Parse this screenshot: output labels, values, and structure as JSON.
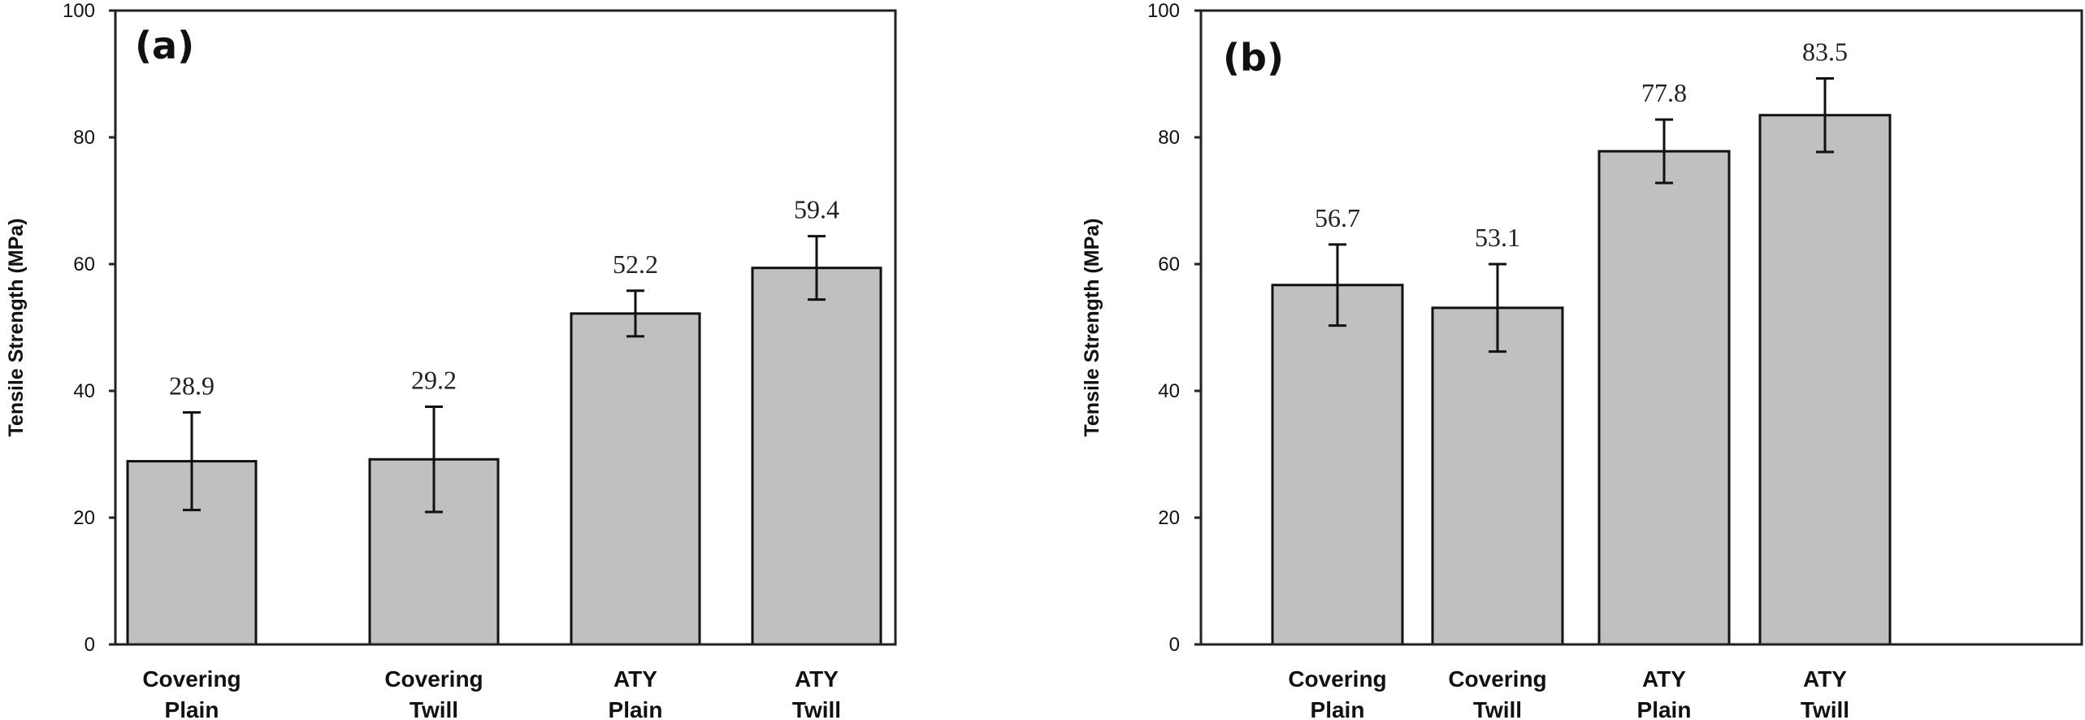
{
  "chart_data": [
    {
      "type": "bar",
      "panel": "(a)",
      "title": "",
      "xlabel": "",
      "ylabel": "Tensile Strength (MPa)",
      "ylim": [
        0,
        100
      ],
      "yticks": [
        0,
        20,
        40,
        60,
        80,
        100
      ],
      "ytick_labels": [
        "0",
        "20",
        "40",
        "60",
        "80",
        "100"
      ],
      "grid": false,
      "legend": "none",
      "categories": [
        [
          "Covering",
          "Plain"
        ],
        [
          "Covering",
          "Twill"
        ],
        [
          "ATY",
          "Plain"
        ],
        [
          "ATY",
          "Twill"
        ]
      ],
      "values": [
        28.9,
        29.2,
        52.2,
        59.4
      ],
      "value_labels": [
        "28.9",
        "29.2",
        "52.2",
        "59.4"
      ],
      "error": [
        7.7,
        8.3,
        3.6,
        5.0
      ],
      "bar_color": "#c0c0c0",
      "edge_color": "#111111"
    },
    {
      "type": "bar",
      "panel": "(b)",
      "title": "",
      "xlabel": "",
      "ylabel": "Tensile Strength (MPa)",
      "ylim": [
        0,
        100
      ],
      "yticks": [
        0,
        20,
        40,
        60,
        80,
        100
      ],
      "ytick_labels": [
        "0",
        "20",
        "40",
        "60",
        "80",
        "100"
      ],
      "grid": false,
      "legend": "none",
      "categories": [
        [
          "Covering",
          "Plain"
        ],
        [
          "Covering",
          "Twill"
        ],
        [
          "ATY",
          "Plain"
        ],
        [
          "ATY",
          "Twill"
        ]
      ],
      "values": [
        56.7,
        53.1,
        77.8,
        83.5
      ],
      "value_labels": [
        "56.7",
        "53.1",
        "77.8",
        "83.5"
      ],
      "error": [
        6.4,
        6.9,
        5.0,
        5.8
      ],
      "bar_color": "#c0c0c0",
      "edge_color": "#111111"
    }
  ]
}
